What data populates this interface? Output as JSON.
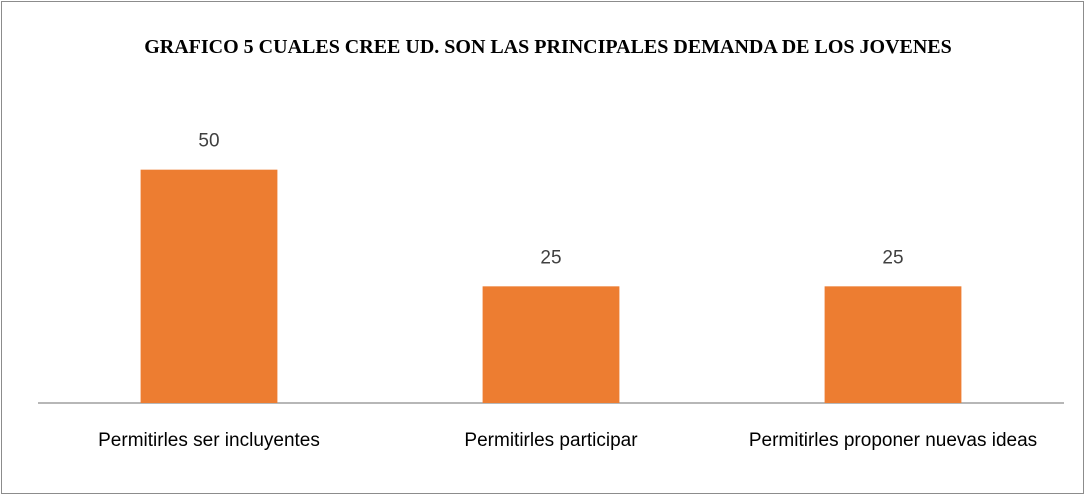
{
  "chart_data": {
    "type": "bar",
    "title": "GRAFICO 5 CUALES CREE UD. SON LAS PRINCIPALES DEMANDA DE LOS JOVENES",
    "categories": [
      "Permitirles ser incluyentes",
      "Permitirles participar",
      "Permitirles proponer nuevas ideas"
    ],
    "values": [
      50,
      25,
      25
    ],
    "color": "#ed7d31",
    "ylim": [
      0,
      60
    ]
  }
}
